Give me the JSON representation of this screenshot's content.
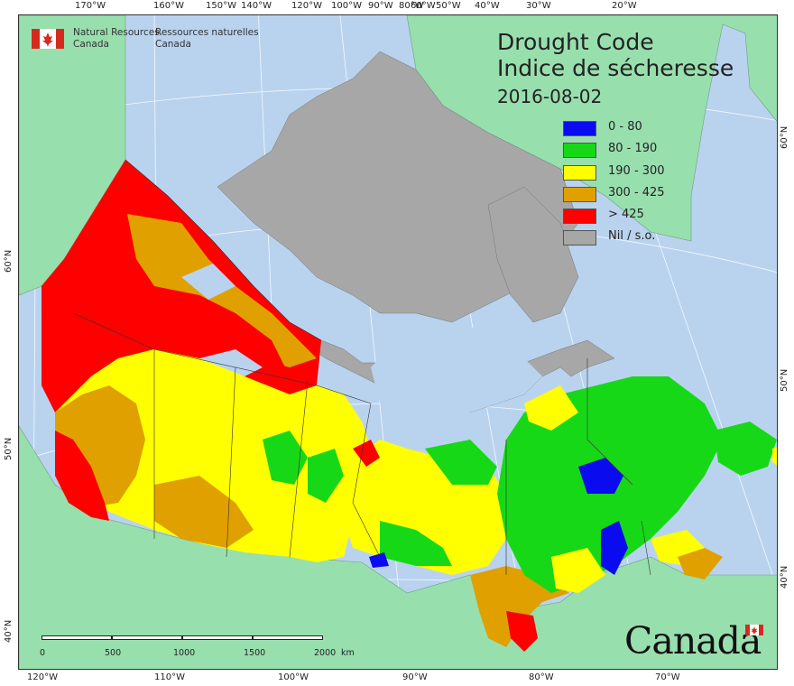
{
  "agency": {
    "name_en_line1": "Natural Resources",
    "name_en_line2": "Canada",
    "name_fr_line1": "Ressources naturelles",
    "name_fr_line2": "Canada"
  },
  "title": {
    "line1": "Drought Code",
    "line2": "Indice de sécheresse",
    "date": "2016-08-02"
  },
  "legend": [
    {
      "label": "0 - 80",
      "color": "#0b0bf0"
    },
    {
      "label": "80 - 190",
      "color": "#17d817"
    },
    {
      "label": "190 - 300",
      "color": "#ffff00"
    },
    {
      "label": "300 - 425",
      "color": "#e0a000"
    },
    {
      "label": "> 425",
      "color": "#ff0000"
    },
    {
      "label": "Nil / s.o.",
      "color": "#a7a7a7"
    }
  ],
  "graticule_top": [
    "170°W",
    "160°W",
    "150°W",
    "140°W",
    "120°W",
    "100°W",
    "90°W",
    "80°W",
    "60°W",
    "50°W",
    "40°W",
    "30°W",
    "20°W"
  ],
  "graticule_bottom": [
    "120°W",
    "110°W",
    "100°W",
    "90°W",
    "80°W",
    "70°W"
  ],
  "graticule_left": [
    "60°N",
    "50°N",
    "40°N"
  ],
  "graticule_right": [
    "60°N",
    "50°N",
    "40°N"
  ],
  "scale_bar": {
    "ticks": [
      "0",
      "500",
      "1000",
      "1500",
      "2000"
    ],
    "unit": "km"
  },
  "wordmark": "Canada",
  "colors": {
    "ocean": "#b9d3ef",
    "foreign_land": "#98dfae",
    "no_data": "#a7a7a7",
    "flag_red": "#d52b1e"
  }
}
